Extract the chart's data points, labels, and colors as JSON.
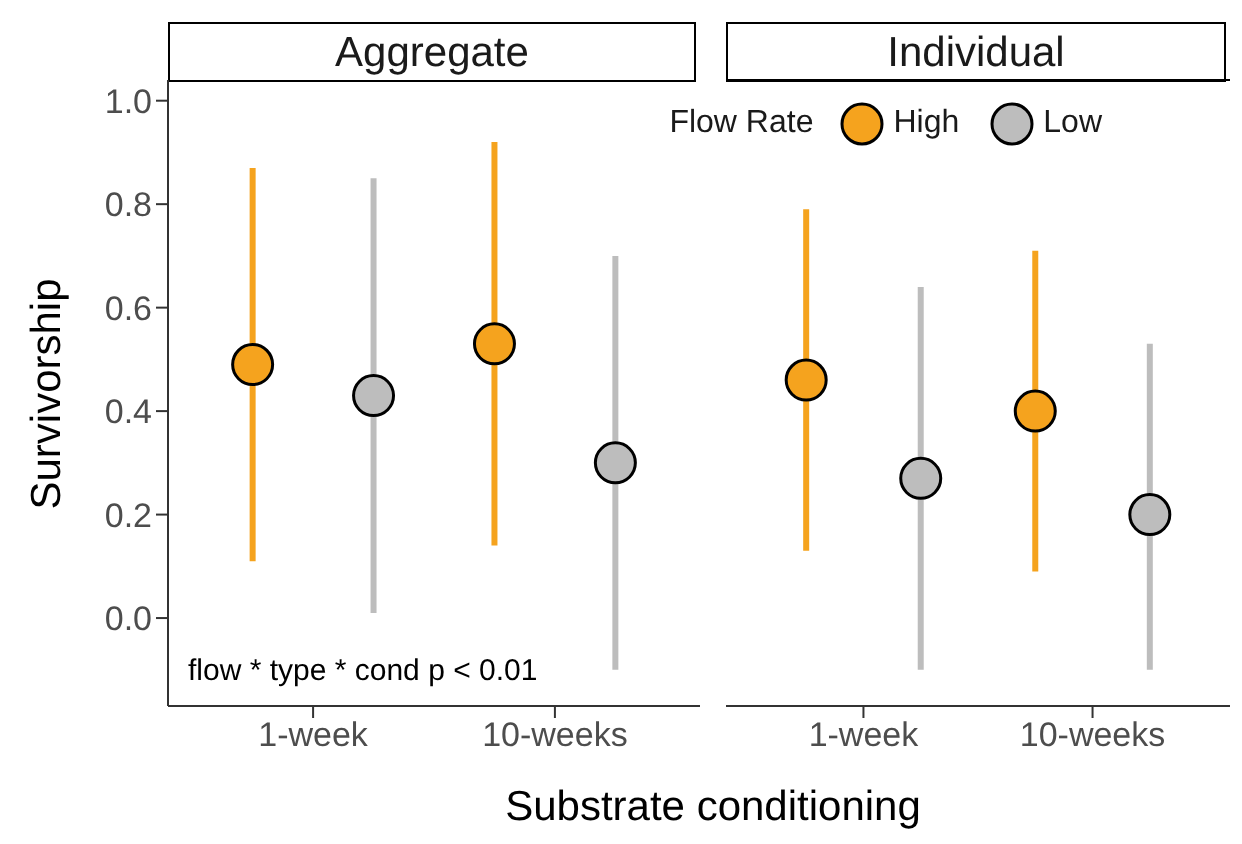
{
  "chart_data": [
    {
      "type": "scatter",
      "title": "Aggregate",
      "xlabel": "Substrate conditioning",
      "ylabel": "Survivorship",
      "legend_title": "Flow Rate",
      "legend": "top right",
      "marker": "circle",
      "grid": false,
      "categories": [
        "1-week",
        "10-weeks"
      ],
      "ylim": [
        -0.17,
        1.04
      ],
      "yticks": [
        {
          "value": 0,
          "label": "0.0"
        },
        {
          "value": 0.2,
          "label": "0.2"
        },
        {
          "value": 0.4,
          "label": "0.4"
        },
        {
          "value": 0.6,
          "label": "0.6"
        },
        {
          "value": 0.8,
          "label": "0.8"
        },
        {
          "value": 1,
          "label": "1.0"
        }
      ],
      "annotations": [
        "flow * type * cond p < 0.01"
      ],
      "series": [
        {
          "name": "High",
          "color": "#f5a31e",
          "values": [
            0.49,
            0.53
          ],
          "errors": [
            [
              0.11,
              0.87
            ],
            [
              0.14,
              0.92
            ]
          ]
        },
        {
          "name": "Low",
          "color": "#bdbdbd",
          "values": [
            0.43,
            0.3
          ],
          "errors": [
            [
              0.01,
              0.85
            ],
            [
              -0.1,
              0.7
            ]
          ]
        }
      ]
    },
    {
      "type": "scatter",
      "title": "Individual",
      "marker": "circle",
      "grid": false,
      "tick_labels": "x",
      "categories": [
        "1-week",
        "10-weeks"
      ],
      "ylim": [
        -0.17,
        1.04
      ],
      "series": [
        {
          "color": "#f5a31e",
          "values": [
            0.46,
            0.4
          ],
          "errors": [
            [
              0.13,
              0.79
            ],
            [
              0.09,
              0.71
            ]
          ]
        },
        {
          "color": "#bdbdbd",
          "values": [
            0.27,
            0.2
          ],
          "errors": [
            [
              -0.1,
              0.64
            ],
            [
              -0.1,
              0.53
            ]
          ]
        }
      ]
    }
  ]
}
